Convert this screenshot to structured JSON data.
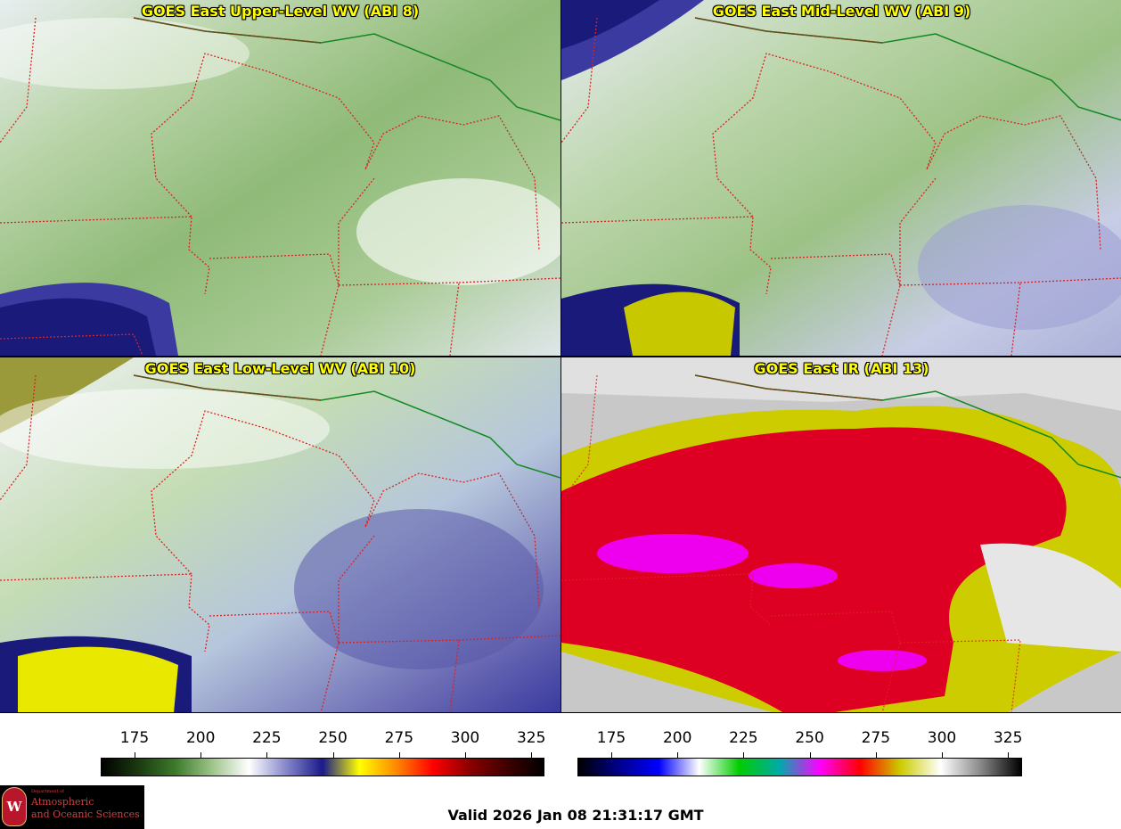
{
  "panels": [
    {
      "title": "GOES East Upper-Level WV (ABI 8)",
      "product": "upper-level-wv"
    },
    {
      "title": "GOES East Mid-Level WV (ABI 9)",
      "product": "mid-level-wv"
    },
    {
      "title": "GOES East Low-Level WV (ABI 10)",
      "product": "low-level-wv"
    },
    {
      "title": "GOES East IR (ABI 13)",
      "product": "ir"
    }
  ],
  "colorbars": {
    "wv": {
      "ticks": [
        "175",
        "200",
        "225",
        "250",
        "275",
        "300",
        "325"
      ],
      "colors": [
        "#000000",
        "#1a3a10",
        "#3c7a2a",
        "#9ec48a",
        "#ffffff",
        "#8888cc",
        "#1a1a8a",
        "#ffff00",
        "#ff8800",
        "#ff0000",
        "#8a0000",
        "#400000",
        "#000000"
      ]
    },
    "ir": {
      "ticks": [
        "175",
        "200",
        "225",
        "250",
        "275",
        "300",
        "325"
      ],
      "colors": [
        "#000000",
        "#00008a",
        "#0000ff",
        "#ffffff",
        "#00cc00",
        "#00aaaa",
        "#ff00ff",
        "#ff0000",
        "#cccc00",
        "#ffffff",
        "#888888",
        "#000000"
      ]
    }
  },
  "valid_time": "Valid 2026 Jan 08 21:31:17 GMT",
  "logo": {
    "line1": "Department of",
    "line2": "Atmospheric",
    "line3": "and Oceanic Sciences",
    "seal_letter": "W"
  }
}
